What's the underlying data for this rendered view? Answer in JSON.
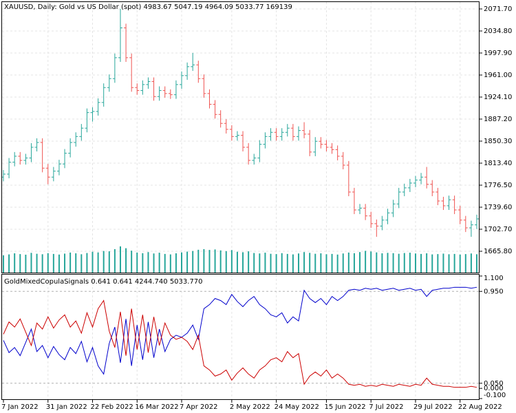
{
  "chart_data": [
    {
      "type": "ohlc",
      "title": "XAUUSD, Daily:  Gold vs US Dollar (spot)  4983.67 5047.19 4964.09 5033.77  169139",
      "categories": [
        "7 Jan 2022",
        null,
        null,
        null,
        null,
        null,
        null,
        null,
        "31 Jan 2022",
        null,
        null,
        null,
        null,
        null,
        null,
        null,
        "22 Feb 2022",
        null,
        null,
        null,
        null,
        null,
        null,
        null,
        "16 Mar 2022",
        null,
        null,
        null,
        null,
        null,
        null,
        null,
        "7 Apr 2022",
        null,
        null,
        null,
        null,
        null,
        null,
        null,
        null,
        "2 May 2022",
        null,
        null,
        null,
        null,
        null,
        null,
        null,
        "24 May 2022",
        null,
        null,
        null,
        null,
        null,
        null,
        null,
        null,
        "15 Jun 2022",
        null,
        null,
        null,
        null,
        null,
        null,
        null,
        "7 Jul 2022",
        null,
        null,
        null,
        null,
        null,
        null,
        null,
        "29 Jul 2022",
        null,
        null,
        null,
        null,
        null,
        null,
        null,
        "22 Aug 2022",
        null,
        null,
        null
      ],
      "open": [
        1790,
        1795,
        1815,
        1825,
        1818,
        1822,
        1840,
        1848,
        1805,
        1790,
        1800,
        1812,
        1830,
        1848,
        1858,
        1872,
        1898,
        1900,
        1915,
        1940,
        1955,
        1990,
        2040,
        1990,
        1940,
        1935,
        1945,
        1950,
        1925,
        1935,
        1930,
        1928,
        1945,
        1960,
        1975,
        1978,
        1955,
        1930,
        1912,
        1895,
        1880,
        1870,
        1858,
        1860,
        1840,
        1818,
        1822,
        1845,
        1858,
        1865,
        1858,
        1865,
        1872,
        1858,
        1868,
        1862,
        1832,
        1850,
        1845,
        1840,
        1836,
        1825,
        1810,
        1765,
        1735,
        1738,
        1725,
        1712,
        1708,
        1718,
        1730,
        1745,
        1765,
        1772,
        1780,
        1785,
        1790,
        1778,
        1765,
        1750,
        1742,
        1752,
        1735,
        1718,
        1705,
        1710
      ],
      "high": [
        1802,
        1822,
        1832,
        1832,
        1829,
        1847,
        1855,
        1855,
        1812,
        1807,
        1819,
        1837,
        1855,
        1865,
        1879,
        1905,
        1907,
        1922,
        1947,
        1962,
        1997,
        2072,
        2047,
        1997,
        1947,
        1952,
        1957,
        1957,
        1942,
        1942,
        1937,
        1952,
        1967,
        1982,
        1998,
        1985,
        1962,
        1937,
        1919,
        1902,
        1887,
        1877,
        1867,
        1867,
        1847,
        1829,
        1852,
        1865,
        1872,
        1872,
        1872,
        1879,
        1879,
        1875,
        1882,
        1869,
        1857,
        1857,
        1852,
        1847,
        1843,
        1832,
        1817,
        1772,
        1745,
        1745,
        1732,
        1719,
        1725,
        1737,
        1752,
        1772,
        1779,
        1787,
        1792,
        1797,
        1807,
        1785,
        1772,
        1757,
        1759,
        1759,
        1742,
        1725,
        1717,
        1727
      ],
      "low": [
        1783,
        1788,
        1808,
        1811,
        1811,
        1815,
        1833,
        1798,
        1778,
        1783,
        1793,
        1805,
        1823,
        1841,
        1851,
        1865,
        1883,
        1893,
        1908,
        1933,
        1948,
        1983,
        1983,
        1933,
        1928,
        1928,
        1938,
        1918,
        1918,
        1923,
        1921,
        1921,
        1938,
        1953,
        1968,
        1948,
        1923,
        1905,
        1888,
        1873,
        1863,
        1851,
        1851,
        1833,
        1811,
        1811,
        1815,
        1838,
        1851,
        1851,
        1851,
        1858,
        1851,
        1851,
        1855,
        1825,
        1825,
        1838,
        1833,
        1829,
        1818,
        1803,
        1758,
        1728,
        1728,
        1718,
        1705,
        1690,
        1701,
        1711,
        1723,
        1738,
        1758,
        1765,
        1773,
        1778,
        1771,
        1758,
        1743,
        1735,
        1735,
        1728,
        1711,
        1698,
        1690,
        1703
      ],
      "close": [
        1795,
        1815,
        1825,
        1818,
        1822,
        1840,
        1848,
        1805,
        1790,
        1800,
        1812,
        1830,
        1848,
        1858,
        1872,
        1898,
        1900,
        1915,
        1940,
        1955,
        1990,
        2040,
        1990,
        1940,
        1935,
        1945,
        1950,
        1925,
        1935,
        1930,
        1928,
        1945,
        1960,
        1975,
        1978,
        1955,
        1930,
        1912,
        1895,
        1880,
        1870,
        1858,
        1860,
        1840,
        1818,
        1822,
        1845,
        1858,
        1865,
        1858,
        1865,
        1872,
        1858,
        1868,
        1862,
        1832,
        1850,
        1845,
        1840,
        1836,
        1825,
        1810,
        1765,
        1735,
        1738,
        1725,
        1712,
        1708,
        1718,
        1730,
        1745,
        1765,
        1772,
        1780,
        1785,
        1790,
        1778,
        1765,
        1750,
        1742,
        1752,
        1735,
        1718,
        1705,
        1710,
        1720
      ],
      "volume": [
        112000,
        118000,
        125000,
        120000,
        116000,
        128000,
        122000,
        119000,
        126000,
        121000,
        117000,
        123000,
        130000,
        125000,
        119000,
        127000,
        135000,
        131000,
        140000,
        138000,
        152000,
        170000,
        158000,
        142000,
        130000,
        126000,
        133000,
        124000,
        129000,
        121000,
        118000,
        125000,
        131000,
        136000,
        140000,
        148000,
        152000,
        147000,
        150000,
        144000,
        139000,
        146000,
        135000,
        132000,
        138000,
        127000,
        124000,
        129000,
        122000,
        120000,
        126000,
        121000,
        118000,
        124000,
        133000,
        128000,
        122000,
        125000,
        119000,
        121000,
        117000,
        124000,
        130000,
        126000,
        133000,
        141000,
        137000,
        131000,
        125000,
        128000,
        126000,
        122000,
        127000,
        129000,
        124000,
        121000,
        125000,
        118000,
        120000,
        123000,
        119000,
        121000,
        117000,
        120000,
        124000,
        119000
      ],
      "up_color": "#26a69a",
      "down_color": "#ef5350",
      "volume_color": "#26a69a",
      "ylim": [
        1630.05,
        2082.08
      ],
      "volume_ylim": [
        0,
        1750000
      ],
      "yticks": [
        {
          "value": 2071.7,
          "label": "2071.70"
        },
        {
          "value": 2034.8,
          "label": "2034.80"
        },
        {
          "value": 1997.9,
          "label": "1997.90"
        },
        {
          "value": 1961,
          "label": "1961.00"
        },
        {
          "value": 1924.1,
          "label": "1924.10"
        },
        {
          "value": 1887.2,
          "label": "1887.20"
        },
        {
          "value": 1850.3,
          "label": "1850.30"
        },
        {
          "value": 1813.4,
          "label": "1813.40"
        },
        {
          "value": 1776.5,
          "label": "1776.50"
        },
        {
          "value": 1739.6,
          "label": "1739.60"
        },
        {
          "value": 1702.7,
          "label": "1702.70"
        },
        {
          "value": 1665.8,
          "label": "1665.80"
        }
      ],
      "grid": true
    },
    {
      "type": "line",
      "title": "GoldMixedCopulaSignals 0.641 0.641 4244.740 5033.770",
      "series": [
        {
          "color": "#0000cc",
          "values": [
            0.47,
            0.35,
            0.4,
            0.32,
            0.45,
            0.58,
            0.36,
            0.42,
            0.3,
            0.41,
            0.33,
            0.28,
            0.4,
            0.34,
            0.46,
            0.26,
            0.4,
            0.22,
            0.14,
            0.44,
            0.6,
            0.25,
            0.68,
            0.22,
            0.62,
            0.28,
            0.65,
            0.3,
            0.58,
            0.36,
            0.48,
            0.52,
            0.5,
            0.54,
            0.62,
            0.48,
            0.78,
            0.82,
            0.88,
            0.86,
            0.82,
            0.92,
            0.85,
            0.8,
            0.86,
            0.9,
            0.82,
            0.78,
            0.72,
            0.7,
            0.74,
            0.64,
            0.7,
            0.66,
            0.96,
            0.88,
            0.84,
            0.88,
            0.82,
            0.9,
            0.86,
            0.9,
            0.96,
            0.97,
            0.96,
            0.98,
            0.97,
            0.98,
            0.96,
            0.97,
            0.98,
            0.96,
            0.97,
            0.98,
            0.96,
            0.97,
            0.9,
            0.96,
            0.97,
            0.98,
            0.98,
            0.99,
            0.99,
            0.99,
            0.98,
            0.99
          ]
        },
        {
          "color": "#cc0000",
          "values": [
            0.53,
            0.65,
            0.6,
            0.68,
            0.55,
            0.42,
            0.64,
            0.58,
            0.7,
            0.59,
            0.67,
            0.72,
            0.6,
            0.66,
            0.54,
            0.74,
            0.6,
            0.78,
            0.86,
            0.56,
            0.4,
            0.75,
            0.32,
            0.78,
            0.38,
            0.72,
            0.35,
            0.7,
            0.42,
            0.64,
            0.52,
            0.48,
            0.5,
            0.46,
            0.38,
            0.52,
            0.22,
            0.18,
            0.12,
            0.14,
            0.18,
            0.08,
            0.15,
            0.2,
            0.14,
            0.1,
            0.18,
            0.22,
            0.28,
            0.3,
            0.26,
            0.36,
            0.3,
            0.34,
            0.04,
            0.12,
            0.16,
            0.12,
            0.18,
            0.1,
            0.14,
            0.1,
            0.04,
            0.03,
            0.04,
            0.02,
            0.03,
            0.02,
            0.04,
            0.03,
            0.02,
            0.04,
            0.03,
            0.02,
            0.04,
            0.03,
            0.1,
            0.04,
            0.03,
            0.02,
            0.02,
            0.01,
            0.01,
            0.01,
            0.02,
            0.01
          ]
        }
      ],
      "ylim": [
        -0.1,
        1.1
      ],
      "yticks": [
        {
          "value": 1.1,
          "label": "1.100"
        },
        {
          "value": 0.95,
          "label": "0.950"
        },
        {
          "value": 0.05,
          "label": "0.050"
        },
        {
          "value": 0,
          "label": "0.000"
        },
        {
          "value": -0.1,
          "label": "-0.100"
        }
      ],
      "levels": [
        0.95,
        0.05
      ]
    }
  ]
}
